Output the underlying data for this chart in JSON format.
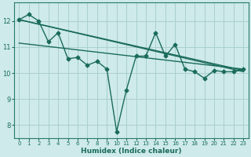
{
  "title": "",
  "xlabel": "Humidex (Indice chaleur)",
  "ylabel": "",
  "background_color": "#ceeaea",
  "grid_color": "#aacfcf",
  "line_color": "#1a6b5a",
  "spine_color": "#2a7a6a",
  "xlim": [
    -0.5,
    23.5
  ],
  "ylim": [
    7.5,
    12.7
  ],
  "yticks": [
    8,
    9,
    10,
    11,
    12
  ],
  "xticks": [
    0,
    1,
    2,
    3,
    4,
    5,
    6,
    7,
    8,
    9,
    10,
    11,
    12,
    13,
    14,
    15,
    16,
    17,
    18,
    19,
    20,
    21,
    22,
    23
  ],
  "series1_x": [
    0,
    1,
    2,
    3,
    4,
    5,
    6,
    7,
    8,
    9,
    10,
    11,
    12,
    13,
    14,
    15,
    16,
    17,
    18,
    19,
    20,
    21,
    22,
    23
  ],
  "series1_y": [
    12.05,
    12.25,
    12.0,
    11.2,
    11.55,
    10.55,
    10.6,
    10.3,
    10.45,
    10.15,
    7.75,
    9.35,
    10.65,
    10.65,
    11.55,
    10.65,
    11.1,
    10.15,
    10.05,
    9.8,
    10.1,
    10.05,
    10.05,
    10.15
  ],
  "trend1_x": [
    0,
    23
  ],
  "trend1_y": [
    12.05,
    10.1
  ],
  "trend2_x": [
    0,
    23
  ],
  "trend2_y": [
    12.05,
    10.05
  ],
  "trend3_x": [
    0,
    23
  ],
  "trend3_y": [
    11.15,
    10.15
  ]
}
